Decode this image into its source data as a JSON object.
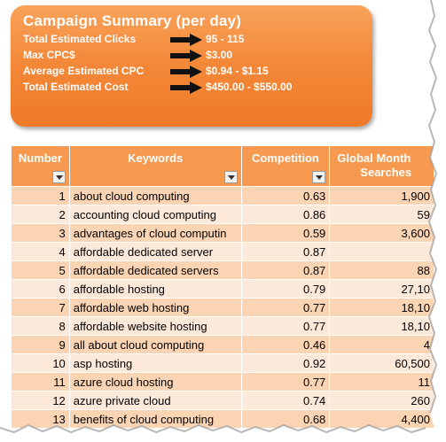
{
  "summary": {
    "title": "Campaign Summary (per day)",
    "rows": [
      {
        "label": "Total Estimated Clicks",
        "value": "95 - 115"
      },
      {
        "label": "Max CPC$",
        "value": "$3.00"
      },
      {
        "label": "Average Estimated CPC",
        "value": "$0.94 - $1.15"
      },
      {
        "label": "Total Estimated Cost",
        "value": "$450.00 - $550.00"
      }
    ]
  },
  "table": {
    "headers": {
      "number": "Number",
      "keywords": "Keywords",
      "competition": "Competition",
      "global_line1": "Global Month",
      "global_line2": "Searches"
    },
    "rows": [
      {
        "number": "1",
        "keyword": "about cloud computing",
        "competition": "0.63",
        "searches": "1,900"
      },
      {
        "number": "2",
        "keyword": "accounting cloud computing",
        "competition": "0.86",
        "searches": "59"
      },
      {
        "number": "3",
        "keyword": "advantages of cloud computin",
        "competition": "0.59",
        "searches": "3,600"
      },
      {
        "number": "4",
        "keyword": "affordable dedicated server",
        "competition": "0.87",
        "searches": ""
      },
      {
        "number": "5",
        "keyword": "affordable dedicated servers",
        "competition": "0.87",
        "searches": "88"
      },
      {
        "number": "6",
        "keyword": "affordable hosting",
        "competition": "0.79",
        "searches": "27,10"
      },
      {
        "number": "7",
        "keyword": "affordable web hosting",
        "competition": "0.77",
        "searches": "18,10"
      },
      {
        "number": "8",
        "keyword": "affordable website hosting",
        "competition": "0.77",
        "searches": "18,10"
      },
      {
        "number": "9",
        "keyword": "all about cloud computing",
        "competition": "0.46",
        "searches": "4"
      },
      {
        "number": "10",
        "keyword": "asp hosting",
        "competition": "0.92",
        "searches": "60,500"
      },
      {
        "number": "11",
        "keyword": "azure cloud hosting",
        "competition": "0.77",
        "searches": "11"
      },
      {
        "number": "12",
        "keyword": "azure private cloud",
        "competition": "0.74",
        "searches": "260"
      },
      {
        "number": "13",
        "keyword": "benefits of cloud computing",
        "competition": "0.68",
        "searches": "4,400"
      }
    ]
  }
}
